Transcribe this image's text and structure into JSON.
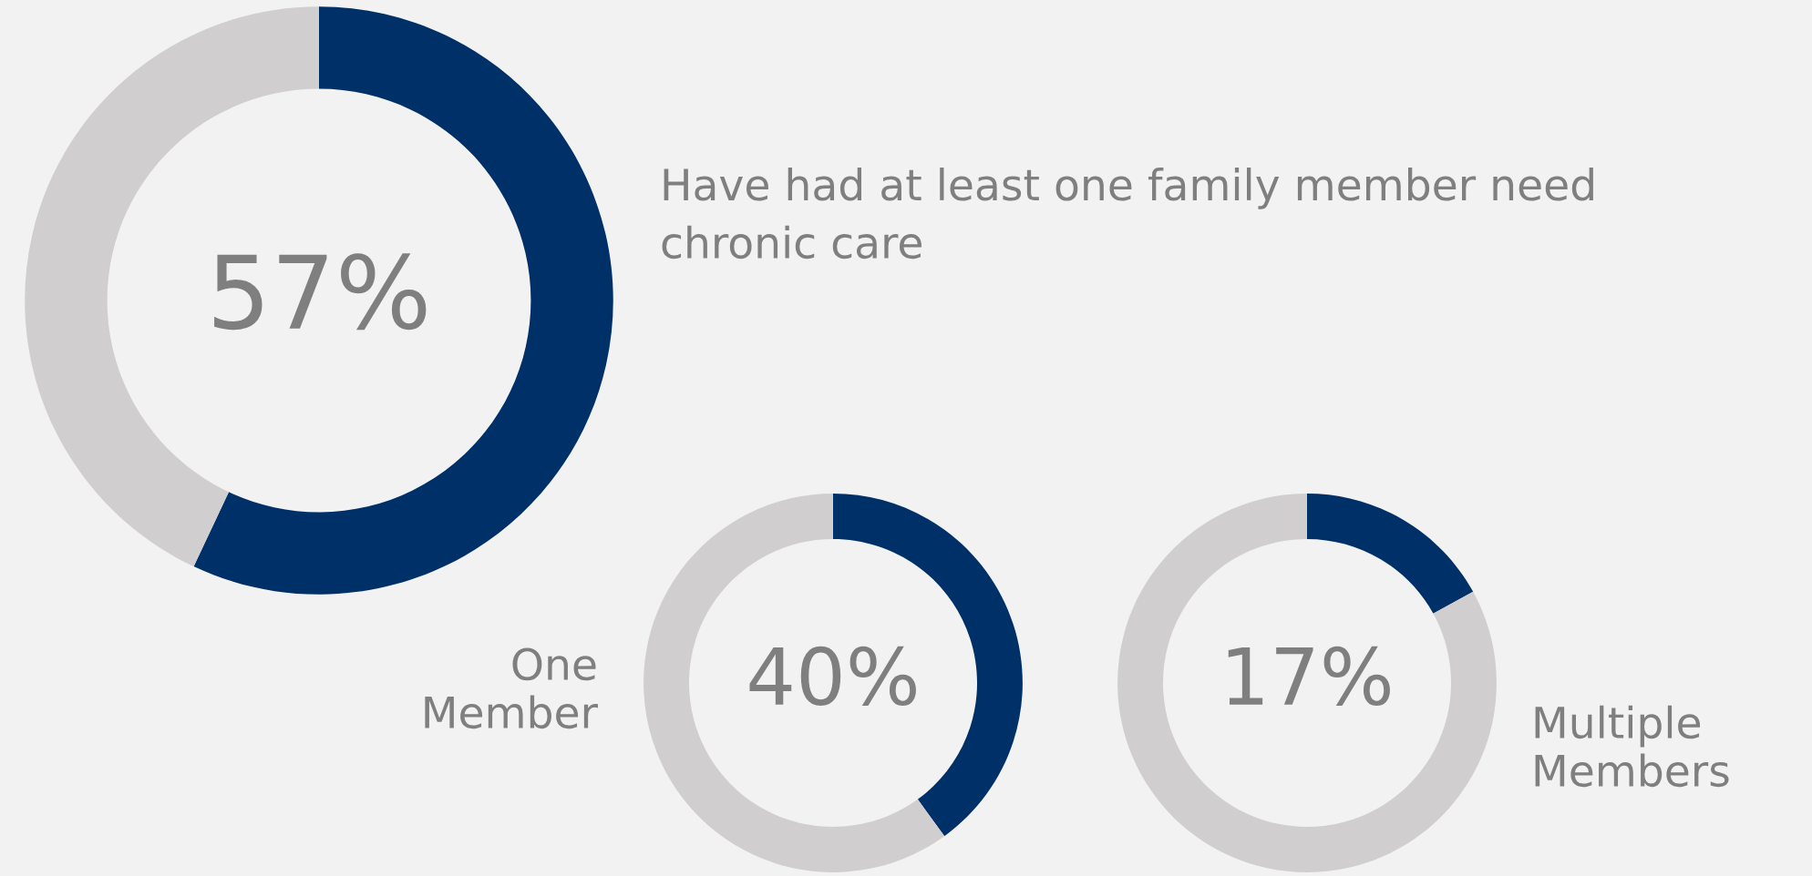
{
  "chart_data": [
    {
      "type": "donut",
      "title": "Have had at least one family member need chronic care",
      "categories": [
        null,
        null
      ],
      "values": [
        57,
        43
      ],
      "colors": [
        "#003068",
        "#d0cece"
      ],
      "value_labels": [
        "57%",
        null
      ]
    },
    {
      "type": "donut",
      "title": "One Member",
      "categories": [
        null,
        null
      ],
      "values": [
        40,
        60
      ],
      "colors": [
        "#003068",
        "#d0cece"
      ],
      "value_labels": [
        "40%",
        null
      ]
    },
    {
      "type": "donut",
      "title": "Multiple Members",
      "categories": [
        null,
        null
      ],
      "values": [
        17,
        83
      ],
      "colors": [
        "#003068",
        "#d0cece"
      ],
      "value_labels": [
        "17%",
        null
      ]
    }
  ]
}
